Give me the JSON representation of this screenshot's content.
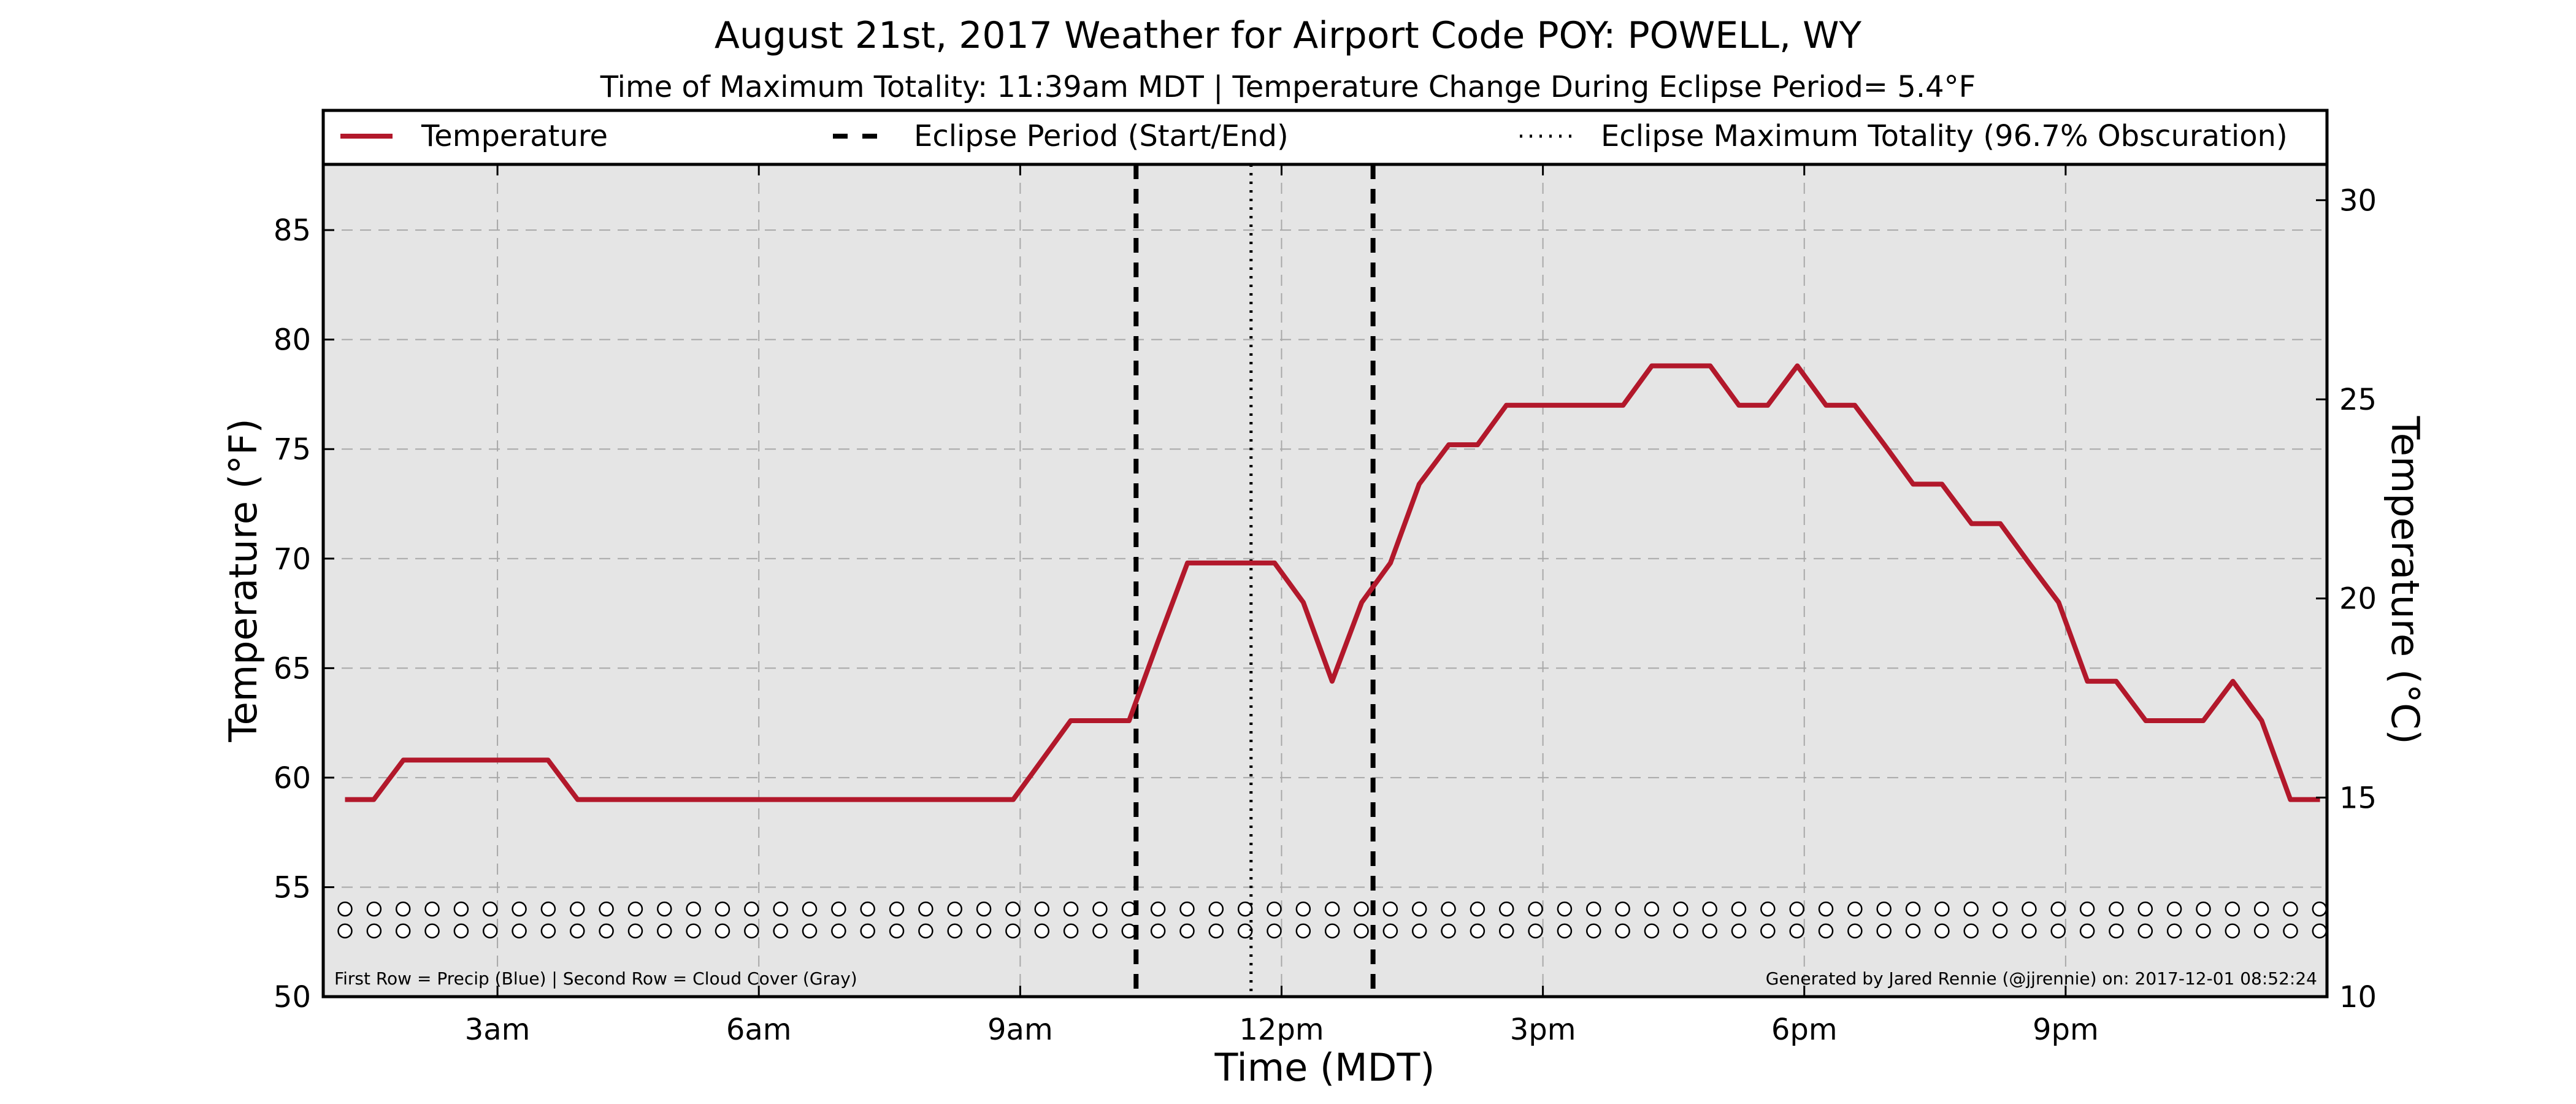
{
  "chart_data": {
    "type": "line",
    "title": "August 21st, 2017 Weather for Airport Code POY: POWELL, WY",
    "subtitle": "Time of Maximum Totality: 11:39am MDT | Temperature Change During Eclipse Period= 5.4°F",
    "xlabel": "Time (MDT)",
    "ylabel": "Temperature (°F)",
    "y2label": "Temperature (°C)",
    "x_unit": "hours since midnight MDT",
    "xlim": [
      1.0,
      24.0
    ],
    "ylim": [
      50,
      88
    ],
    "y2lim": [
      10,
      30.9
    ],
    "x_ticks": [
      {
        "value": 3,
        "label": "3am"
      },
      {
        "value": 6,
        "label": "6am"
      },
      {
        "value": 9,
        "label": "9am"
      },
      {
        "value": 12,
        "label": "12pm"
      },
      {
        "value": 15,
        "label": "3pm"
      },
      {
        "value": 18,
        "label": "6pm"
      },
      {
        "value": 21,
        "label": "9pm"
      }
    ],
    "y_ticks": [
      50,
      55,
      60,
      65,
      70,
      75,
      80,
      85
    ],
    "y2_ticks": [
      10,
      15,
      20,
      25,
      30
    ],
    "grid": true,
    "legend_position": "top",
    "legend": [
      {
        "label": "Temperature",
        "style": "solid",
        "color": "#b2182b"
      },
      {
        "label": "Eclipse Period (Start/End)",
        "style": "dashed",
        "color": "#000000"
      },
      {
        "label": "Eclipse Maximum Totality (96.7% Obscuration)",
        "style": "dotted",
        "color": "#000000"
      }
    ],
    "series": [
      {
        "name": "Temperature",
        "color": "#b2182b",
        "x": [
          1.25,
          1.58,
          1.92,
          2.25,
          2.58,
          2.92,
          3.25,
          3.58,
          3.92,
          4.25,
          4.58,
          4.92,
          5.25,
          5.58,
          5.92,
          6.25,
          6.58,
          6.92,
          7.25,
          7.58,
          7.92,
          8.25,
          8.58,
          8.92,
          9.25,
          9.58,
          9.92,
          10.25,
          10.58,
          10.92,
          11.25,
          11.58,
          11.92,
          12.25,
          12.58,
          12.92,
          13.25,
          13.58,
          13.92,
          14.25,
          14.58,
          14.92,
          15.25,
          15.58,
          15.92,
          16.25,
          16.58,
          16.92,
          17.25,
          17.58,
          17.92,
          18.25,
          18.58,
          18.92,
          19.25,
          19.58,
          19.92,
          20.25,
          20.58,
          20.92,
          21.25,
          21.58,
          21.92,
          22.25,
          22.58,
          22.92,
          23.25,
          23.58,
          23.92
        ],
        "values": [
          59.0,
          59.0,
          60.8,
          60.8,
          60.8,
          60.8,
          60.8,
          60.8,
          59.0,
          59.0,
          59.0,
          59.0,
          59.0,
          59.0,
          59.0,
          59.0,
          59.0,
          59.0,
          59.0,
          59.0,
          59.0,
          59.0,
          59.0,
          59.0,
          60.8,
          62.6,
          62.6,
          62.6,
          66.2,
          69.8,
          69.8,
          69.8,
          69.8,
          68.0,
          64.4,
          68.0,
          69.8,
          73.4,
          75.2,
          75.2,
          77.0,
          77.0,
          77.0,
          77.0,
          77.0,
          78.8,
          78.8,
          78.8,
          77.0,
          77.0,
          78.8,
          77.0,
          77.0,
          75.2,
          73.4,
          73.4,
          71.6,
          71.6,
          69.8,
          68.0,
          64.4,
          64.4,
          62.6,
          62.6,
          62.6,
          64.4,
          62.6,
          59.0,
          59.0
        ]
      }
    ],
    "vlines": [
      {
        "x": 10.33,
        "style": "dashed",
        "label": "Eclipse Period (Start/End)"
      },
      {
        "x": 11.65,
        "style": "dotted",
        "label": "Eclipse Maximum Totality (96.7% Obscuration)"
      },
      {
        "x": 13.05,
        "style": "dashed",
        "label": "Eclipse Period (Start/End)"
      }
    ],
    "marker_rows": [
      {
        "name": "Precip",
        "y": 54.0,
        "color": "#ffffff"
      },
      {
        "name": "Cloud Cover",
        "y": 53.0,
        "color": "#ffffff"
      }
    ],
    "marker_x_start": 1.25,
    "marker_x_step": 0.3333,
    "marker_count": 69,
    "footnote_left": "First Row = Precip (Blue) | Second Row = Cloud Cover (Gray)",
    "footnote_right": "Generated by Jared Rennie (@jjrennie) on: 2017-12-01 08:52:24"
  },
  "colors": {
    "plot_background": "#e5e5e5",
    "grid": "#a8a8a8",
    "temperature_line": "#b2182b"
  }
}
